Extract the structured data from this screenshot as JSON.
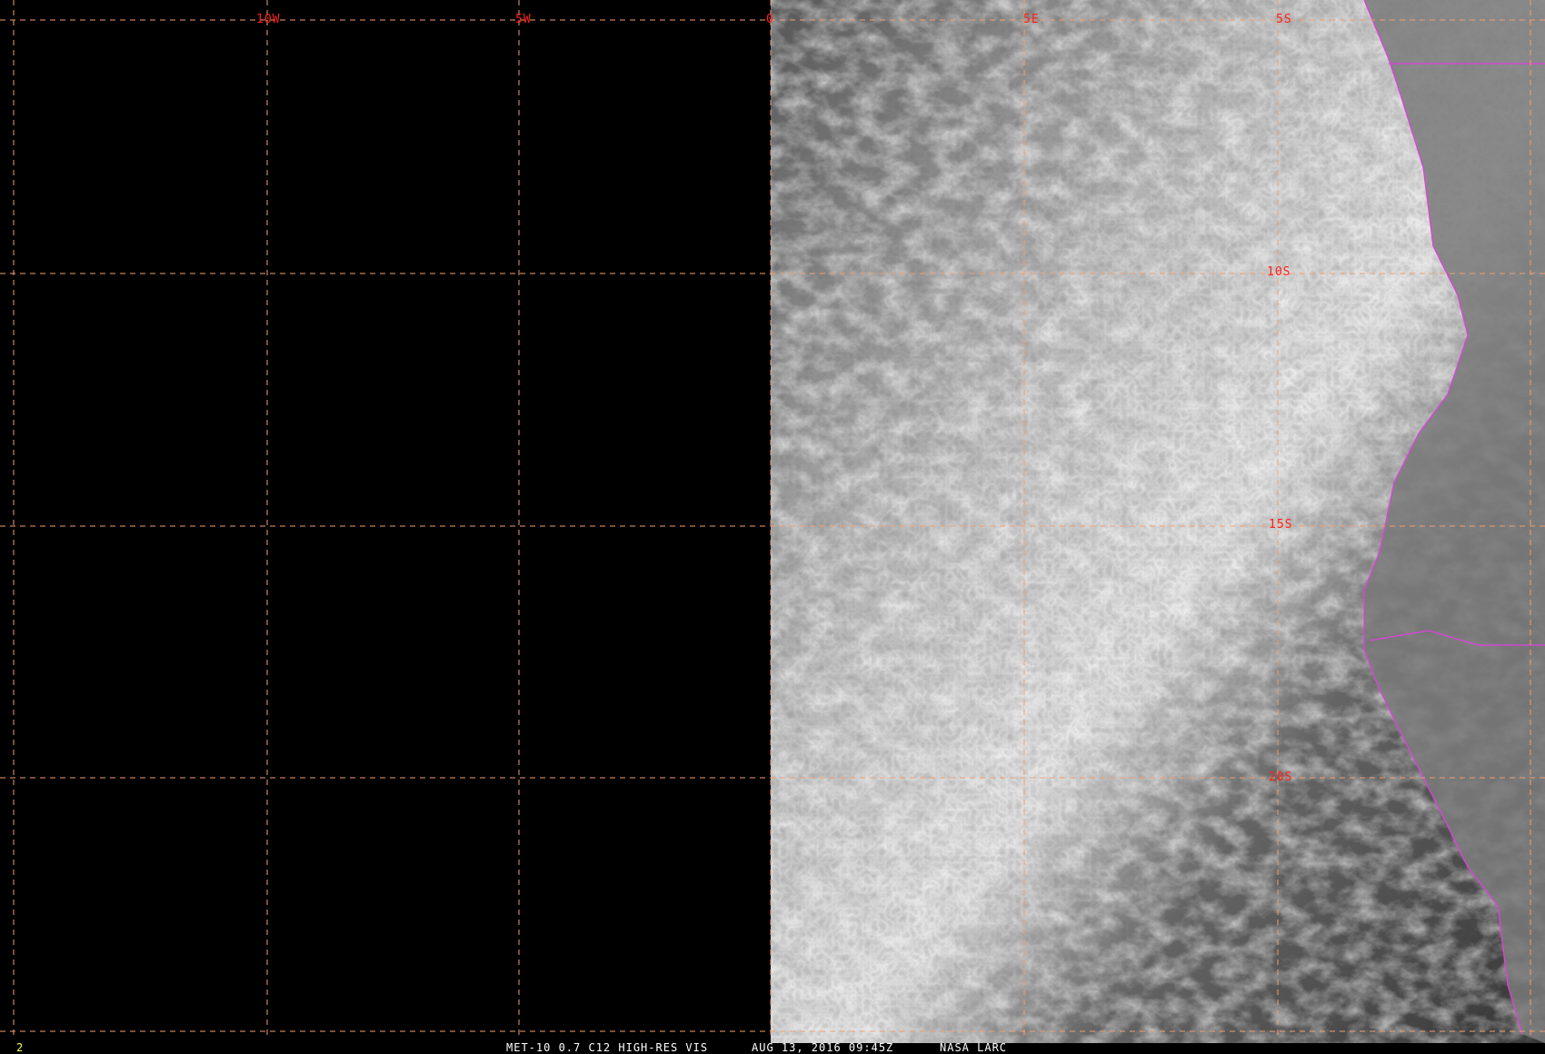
{
  "map": {
    "lon_labels": [
      "10W",
      "5W",
      "0",
      "5E",
      "5S"
    ],
    "lat_labels": [
      "10S",
      "15S",
      "20S"
    ],
    "grid_color": "#f0a070",
    "coast_color": "#e040e0",
    "label_color": "#ff2020"
  },
  "footer": {
    "frame_number": "2",
    "product": "MET-10 0.7 C12 HIGH-RES VIS",
    "datetime": "AUG 13, 2016 09:45Z",
    "source": "NASA LARC"
  }
}
